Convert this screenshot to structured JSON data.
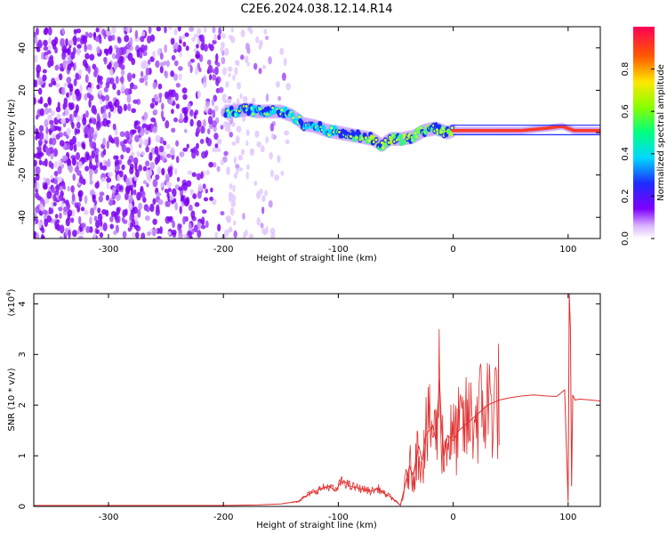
{
  "title": "C2E6.2024.038.12.14.R14",
  "chart_data": [
    {
      "type": "heatmap",
      "xlabel": "Height of straight line (km)",
      "ylabel": "Frequency (Hz)",
      "xlim": [
        -365,
        128
      ],
      "ylim": [
        -50,
        50
      ],
      "xticks": [
        -300,
        -200,
        -100,
        0,
        100
      ],
      "xtick_labels": [
        "-300",
        "-200",
        "-100",
        "0",
        "100"
      ],
      "yticks": [
        -40,
        -20,
        0,
        20,
        40
      ],
      "ytick_labels": [
        "-40",
        "-20",
        "0",
        "20",
        "40"
      ],
      "colorbar": {
        "label": "Normalized spectral amplitude",
        "range": [
          0,
          1
        ],
        "ticks": [
          0.0,
          0.2,
          0.4,
          0.6,
          0.8
        ],
        "tick_labels": [
          "0.0",
          "0.2",
          "0.4",
          "0.6",
          "0.8"
        ]
      },
      "ridge": {
        "x": [
          -198,
          -190,
          -180,
          -170,
          -160,
          -150,
          -140,
          -130,
          -120,
          -110,
          -100,
          -90,
          -80,
          -70,
          -62,
          -55,
          -45,
          -35,
          -25,
          -15,
          -5,
          0,
          20,
          40,
          60,
          80,
          95,
          105,
          128
        ],
        "y": [
          10,
          10,
          11,
          10,
          10,
          10,
          8,
          4,
          3,
          1,
          0,
          -1,
          -2,
          -3,
          -6,
          -3,
          -3,
          -2,
          1,
          2,
          0,
          1,
          1,
          1,
          1,
          2,
          3,
          1,
          1
        ]
      },
      "noise_region": [
        -365,
        -150
      ],
      "grid": false
    },
    {
      "type": "line",
      "xlabel": "Height of straight line (km)",
      "ylabel": "SNR (10 * v/v)",
      "yscale_label": "(x10",
      "yscale_exponent": "4",
      "xlim": [
        -365,
        128
      ],
      "ylim": [
        0,
        4.2
      ],
      "xticks": [
        -300,
        -200,
        -100,
        0,
        100
      ],
      "xtick_labels": [
        "-300",
        "-200",
        "-100",
        "0",
        "100"
      ],
      "yticks": [
        0,
        1,
        2,
        3,
        4
      ],
      "ytick_labels": [
        "0",
        "1",
        "2",
        "3",
        "4"
      ],
      "color": "#e03030",
      "series": [
        {
          "x": [
            -365,
            -300,
            -250,
            -200,
            -170,
            -150,
            -135,
            -125,
            -115,
            -108,
            -102,
            -99,
            -95,
            -90,
            -80,
            -72,
            -65,
            -60,
            -55,
            -50,
            -46,
            -42,
            -38,
            -35,
            -30,
            -27,
            -24,
            -21,
            -18,
            -15,
            -12,
            -10,
            -8,
            -5,
            0,
            5,
            10,
            20,
            30,
            40,
            50,
            60,
            70,
            80,
            90,
            97,
            100,
            101,
            102,
            103,
            104,
            106,
            110,
            120,
            128
          ],
          "y": [
            0.02,
            0.02,
            0.02,
            0.02,
            0.03,
            0.05,
            0.1,
            0.25,
            0.35,
            0.4,
            0.3,
            0.45,
            0.5,
            0.4,
            0.35,
            0.3,
            0.35,
            0.25,
            0.2,
            0.1,
            0.02,
            0.4,
            0.8,
            0.6,
            1.2,
            0.9,
            1.4,
            1.5,
            1.6,
            1.3,
            2.5,
            1.5,
            1.0,
            1.4,
            1.3,
            1.5,
            1.6,
            1.8,
            2.0,
            2.1,
            2.15,
            2.18,
            2.2,
            2.18,
            2.17,
            2.3,
            0.1,
            4.2,
            3.5,
            0.4,
            2.2,
            2.1,
            2.12,
            2.1,
            2.08
          ]
        }
      ],
      "grid": false
    }
  ]
}
